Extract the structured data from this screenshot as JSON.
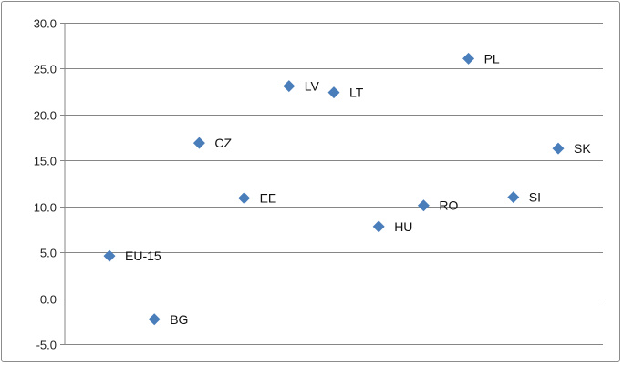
{
  "chart_data": {
    "type": "scatter",
    "title": "",
    "xlabel": "",
    "ylabel": "",
    "ylim": [
      -5,
      30
    ],
    "y_ticks": [
      "30.0",
      "25.0",
      "20.0",
      "15.0",
      "10.0",
      "5.0",
      "0.0",
      "-5.0"
    ],
    "grid": "horizontal",
    "legend": "none",
    "marker": "diamond",
    "color": "#4a7ebb",
    "points": [
      {
        "label": "EU-15",
        "x": 1,
        "y": 4.6
      },
      {
        "label": "BG",
        "x": 2,
        "y": -2.3
      },
      {
        "label": "CZ",
        "x": 3,
        "y": 16.9
      },
      {
        "label": "EE",
        "x": 4,
        "y": 10.9
      },
      {
        "label": "LV",
        "x": 5,
        "y": 23.1
      },
      {
        "label": "LT",
        "x": 6,
        "y": 22.4
      },
      {
        "label": "HU",
        "x": 7,
        "y": 7.8
      },
      {
        "label": "RO",
        "x": 8,
        "y": 10.1
      },
      {
        "label": "PL",
        "x": 9,
        "y": 26.1
      },
      {
        "label": "SI",
        "x": 10,
        "y": 11.0
      },
      {
        "label": "SK",
        "x": 11,
        "y": 16.3
      }
    ]
  }
}
